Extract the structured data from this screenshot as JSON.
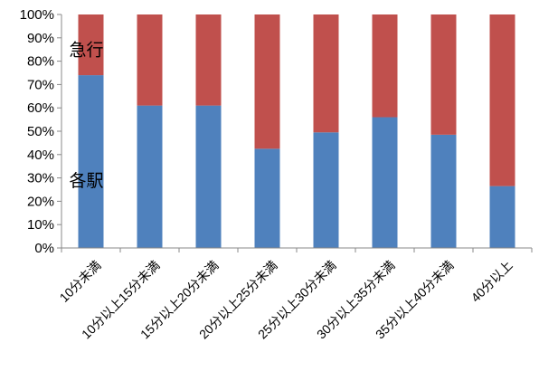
{
  "chart_data": {
    "type": "bar",
    "stacked": true,
    "normalized": true,
    "categories": [
      "10分未満",
      "10分以上15分未満",
      "15分以上20分未満",
      "20分以上25分未満",
      "25分以上30分未満",
      "30分以上35分未満",
      "35分以上40分未満",
      "40分以上"
    ],
    "series": [
      {
        "name": "各駅",
        "values": [
          74,
          61,
          61,
          42.5,
          49.5,
          56,
          48.5,
          26.5
        ],
        "color": "#4F81BD"
      },
      {
        "name": "急行",
        "values": [
          26,
          39,
          39,
          57.5,
          50.5,
          44,
          51.5,
          73.5
        ],
        "color": "#C0504D"
      }
    ],
    "y_ticks": [
      "0%",
      "10%",
      "20%",
      "30%",
      "40%",
      "50%",
      "60%",
      "70%",
      "80%",
      "90%",
      "100%"
    ],
    "ylim": [
      0,
      100
    ],
    "title": "",
    "xlabel": "",
    "ylabel": "",
    "grid": false,
    "legend": "inline labels inside first bar"
  }
}
